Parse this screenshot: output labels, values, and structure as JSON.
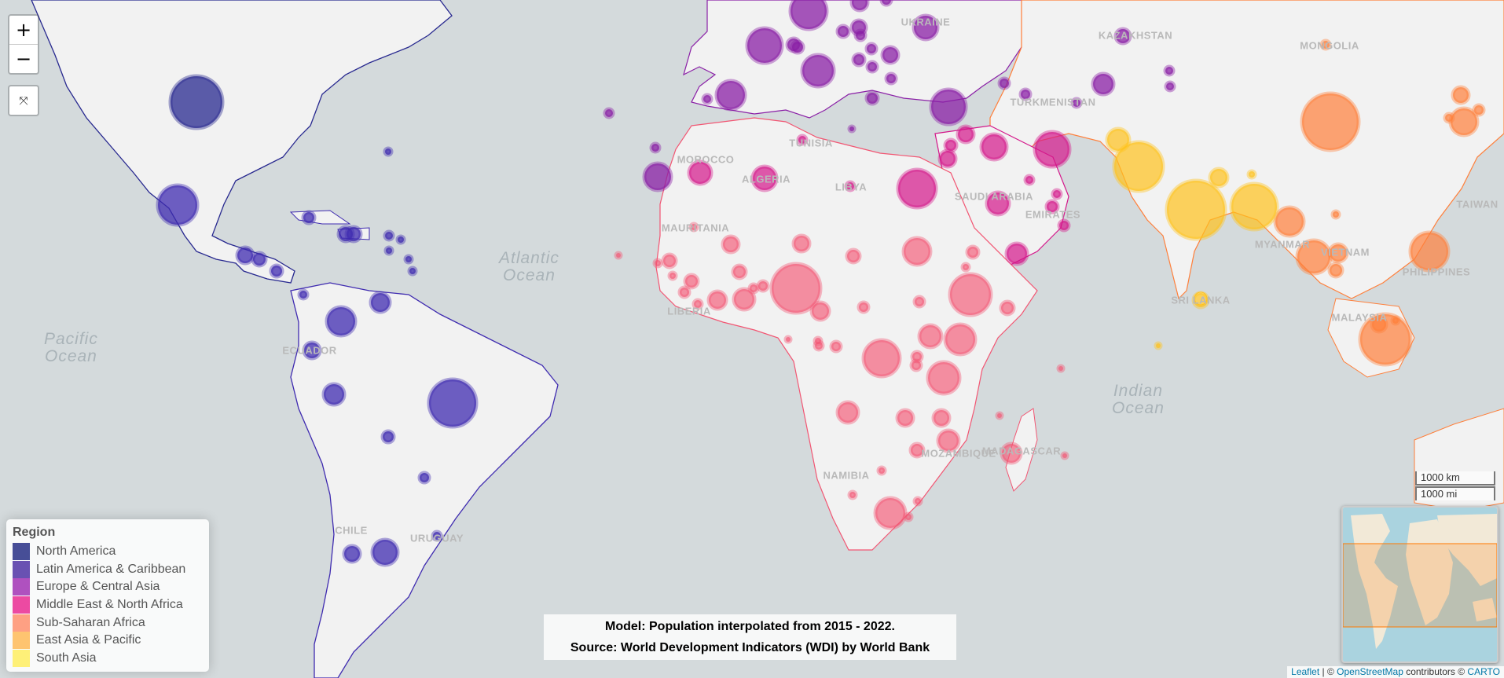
{
  "map": {
    "ocean_labels": [
      {
        "id": "atlantic",
        "line1": "Atlantic",
        "line2": "Ocean"
      },
      {
        "id": "pacific",
        "line1": "Pacific",
        "line2": "Ocean"
      },
      {
        "id": "indian",
        "line1": "Indian",
        "line2": "Ocean"
      }
    ],
    "country_labels": {
      "kazakhstan": "KAZAKHSTAN",
      "mongolia": "MONGOLIA",
      "turkmenistan": "TURKMENISTAN",
      "morocco": "MOROCCO",
      "algeria": "ALGERIA",
      "tunisia": "TUNISIA",
      "libya": "LIBYA",
      "mauritania": "MAURITANIA",
      "saudi": "SAUDI ARABIA",
      "emirates": "EMIRATES",
      "philippines": "PHILIPPINES",
      "vietnam": "VIETNAM",
      "malaysia": "MALAYSIA",
      "srilanka": "SRI LANKA",
      "mozambique": "MOZAMBIQUE",
      "madagascar": "MADAGASCAR",
      "namibia": "NAMIBIA",
      "chile": "CHILE",
      "uruguay": "URUGUAY",
      "ecuador": "ECUADOR",
      "taiwan": "TAIWAN",
      "myanmar": "MYANMAR",
      "ukraine": "UKRAINE",
      "liberia": "LIBERIA"
    }
  },
  "controls": {
    "zoom_in": "+",
    "zoom_out": "−",
    "fullscreen_icon": "⤧"
  },
  "legend": {
    "title": "Region",
    "items": [
      {
        "label": "North America",
        "color": "#1a237e"
      },
      {
        "label": "Latin America & Caribbean",
        "color": "#4527a0"
      },
      {
        "label": "Europe & Central Asia",
        "color": "#9c27b0"
      },
      {
        "label": "Middle East & North Africa",
        "color": "#e91e8c"
      },
      {
        "label": "Sub-Saharan Africa",
        "color": "#ff8a65"
      },
      {
        "label": "East Asia & Pacific",
        "color": "#ffb74d"
      },
      {
        "label": "South Asia",
        "color": "#ffee58"
      }
    ]
  },
  "colors": {
    "north_america": "#27288f",
    "latin_america": "#3f2bb0",
    "europe_central_asia": "#8a1fa6",
    "mena": "#d4168a",
    "ssa": "#f25673",
    "east_asia": "#ff7f3a",
    "south_asia": "#ffc21c"
  },
  "model_note": {
    "line1": "Model: Population interpolated from 2015 - 2022.",
    "line2": "Source: World Development Indicators (WDI) by World Bank"
  },
  "scale": {
    "km": "1000 km",
    "mi": "1000 mi"
  },
  "attribution": {
    "leaflet": "Leaflet",
    "sep1": " | © ",
    "osm": "OpenStreetMap",
    "contrib": " contributors © ",
    "carto": "CARTO"
  }
}
